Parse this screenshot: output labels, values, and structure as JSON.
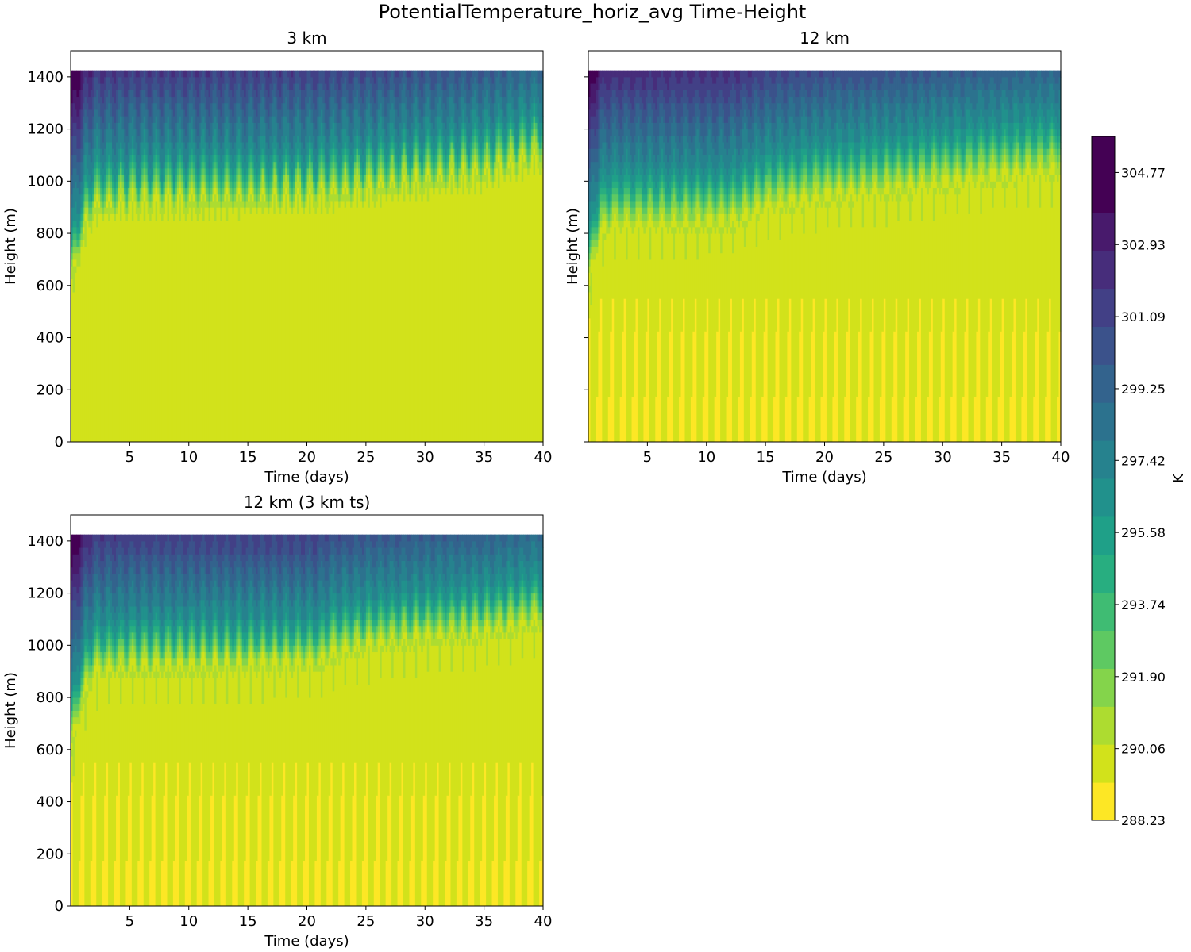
{
  "figure": {
    "title": "PotentialTemperature_horiz_avg Time-Height"
  },
  "chart_data": {
    "type": "heatmap",
    "subtype": "filled-contour",
    "x_range": [
      0,
      40
    ],
    "y_range": [
      0,
      1500
    ],
    "data_top_height_m": 1425,
    "x_ticks": [
      5,
      10,
      15,
      20,
      25,
      30,
      35,
      40
    ],
    "y_ticks": [
      0,
      200,
      400,
      600,
      800,
      1000,
      1200,
      1400
    ],
    "xlabel": "Time (days)",
    "ylabel": "Height (m)",
    "colorbar": {
      "label": "K",
      "min": 288.23,
      "max": 305.69,
      "n_levels": 19,
      "tick_labels": [
        "288.23",
        "290.06",
        "291.90",
        "293.74",
        "295.58",
        "297.42",
        "299.25",
        "301.09",
        "302.93",
        "304.77"
      ],
      "colors": [
        "#fde725",
        "#d2e21b",
        "#addc30",
        "#84d44b",
        "#5ec962",
        "#3fbc73",
        "#28ae80",
        "#1fa088",
        "#21918c",
        "#26828e",
        "#2c728e",
        "#33638d",
        "#3b528b",
        "#424086",
        "#472d7b",
        "#481a6c",
        "#440154"
      ]
    },
    "panels": [
      {
        "id": "3km",
        "title": "3 km",
        "show_ylabels": true,
        "boundary_layer_height_m": [
          [
            0,
            560
          ],
          [
            1,
            760
          ],
          [
            2,
            860
          ],
          [
            5,
            880
          ],
          [
            10,
            885
          ],
          [
            20,
            900
          ],
          [
            25,
            930
          ],
          [
            30,
            960
          ],
          [
            35,
            990
          ],
          [
            40,
            1060
          ]
        ],
        "entrainment_depth_m": 240,
        "mixed_layer_theta_K": 289.9,
        "oscillation_amplitude_m": 55,
        "spike_amplitude_m": 85,
        "surface_spikes": "weak-early"
      },
      {
        "id": "12km",
        "title": "12 km",
        "show_ylabels": false,
        "boundary_layer_height_m": [
          [
            0,
            560
          ],
          [
            1,
            760
          ],
          [
            2,
            790
          ],
          [
            12,
            800
          ],
          [
            15,
            860
          ],
          [
            20,
            900
          ],
          [
            25,
            920
          ],
          [
            30,
            950
          ],
          [
            35,
            980
          ],
          [
            40,
            1000
          ]
        ],
        "entrainment_depth_m": 280,
        "mixed_layer_theta_K": 289.6,
        "oscillation_amplitude_m": 35,
        "spike_amplitude_m": 120,
        "surface_spikes": "strong"
      },
      {
        "id": "12km_3kmts",
        "title": "12 km (3 km ts)",
        "show_ylabels": true,
        "boundary_layer_height_m": [
          [
            0,
            560
          ],
          [
            1,
            760
          ],
          [
            2,
            860
          ],
          [
            5,
            880
          ],
          [
            21,
            890
          ],
          [
            22,
            930
          ],
          [
            25,
            960
          ],
          [
            30,
            990
          ],
          [
            35,
            1010
          ],
          [
            40,
            1060
          ]
        ],
        "entrainment_depth_m": 250,
        "mixed_layer_theta_K": 289.7,
        "oscillation_amplitude_m": 40,
        "spike_amplitude_m": 140,
        "surface_spikes": "strong"
      }
    ]
  }
}
